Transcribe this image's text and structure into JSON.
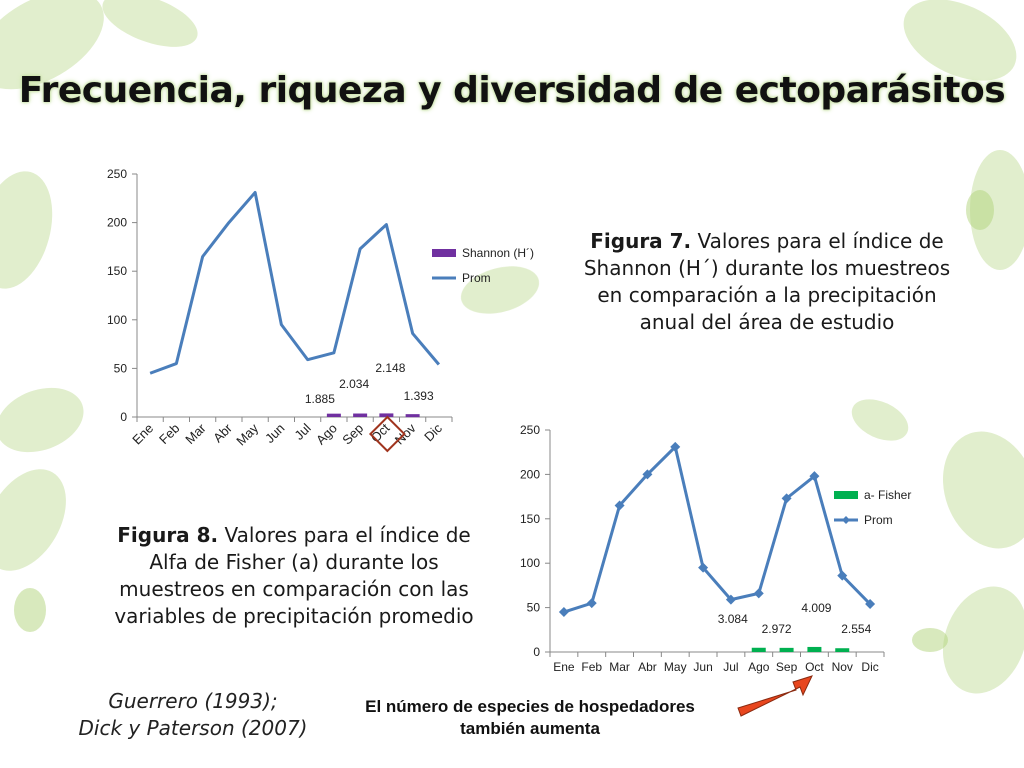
{
  "slide": {
    "title": "Frecuencia, riqueza y diversidad de ectoparásitos",
    "figure7_label": "Figura 7.",
    "figure7_text": " Valores para el índice de Shannon (H´) durante los muestreos en comparación a la precipitación anual del área de estudio",
    "figure8_label": "Figura 8.",
    "figure8_text": "  Valores para el índice de Alfa de Fisher (a) durante los muestreos en comparación con las variables de precipitación promedio",
    "citation_line1": "Guerrero (1993);",
    "citation_line2": "Dick y Paterson (2007)",
    "note_line1": "El número de especies de hospedadores",
    "note_line2": "también aumenta"
  },
  "colors": {
    "prom_line": "#4a7ebb",
    "shannon_bar": "#7030a0",
    "fisher_bar": "#00b050",
    "highlight_box": "#a0341e",
    "arrow": "#e8461e"
  },
  "chart_data": [
    {
      "type": "bar",
      "categories": [
        "Ene",
        "Feb",
        "Mar",
        "Abr",
        "May",
        "Jun",
        "Jul",
        "Ago",
        "Sep",
        "Oct",
        "Nov",
        "Dic"
      ],
      "ylim": [
        0,
        250
      ],
      "yticks": [
        0,
        50,
        100,
        150,
        200,
        250
      ],
      "series": [
        {
          "name": "Shannon (H´)",
          "type": "bar",
          "values": [
            null,
            null,
            null,
            null,
            null,
            null,
            null,
            1.885,
            2.034,
            2.148,
            1.393,
            null
          ],
          "labels": [
            null,
            null,
            null,
            null,
            null,
            null,
            null,
            "1.885",
            "2.034",
            "2.148",
            "1.393",
            null
          ]
        },
        {
          "name": "Prom",
          "type": "line",
          "values": [
            45,
            55,
            165,
            200,
            231,
            95,
            59,
            66,
            173,
            198,
            86,
            54
          ]
        }
      ],
      "highlight_category": "Oct",
      "legend": "right"
    },
    {
      "type": "bar",
      "categories": [
        "Ene",
        "Feb",
        "Mar",
        "Abr",
        "May",
        "Jun",
        "Jul",
        "Ago",
        "Sep",
        "Oct",
        "Nov",
        "Dic"
      ],
      "ylim": [
        0,
        250
      ],
      "yticks": [
        0,
        50,
        100,
        150,
        200,
        250
      ],
      "series": [
        {
          "name": "a- Fisher",
          "type": "bar",
          "values": [
            null,
            null,
            null,
            null,
            null,
            null,
            null,
            3.084,
            2.972,
            4.009,
            2.554,
            null
          ],
          "labels": [
            null,
            null,
            null,
            null,
            null,
            null,
            null,
            "3.084",
            "2.972",
            "4.009",
            "2.554",
            null
          ]
        },
        {
          "name": "Prom",
          "type": "line",
          "marker": "diamond",
          "values": [
            45,
            55,
            165,
            200,
            231,
            95,
            59,
            66,
            173,
            198,
            86,
            54
          ]
        }
      ],
      "highlight_category": "Oct",
      "legend": "right"
    }
  ]
}
